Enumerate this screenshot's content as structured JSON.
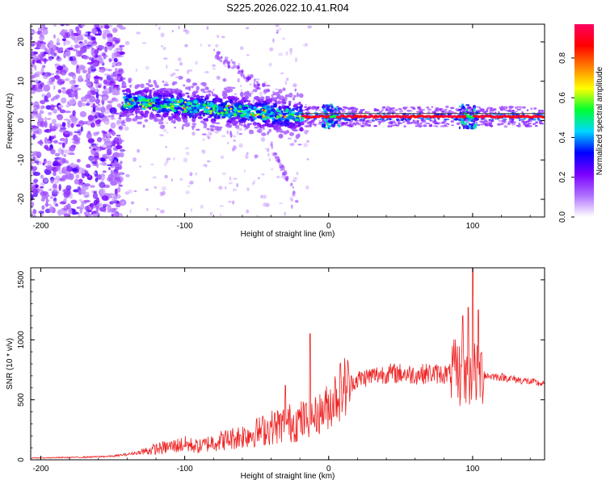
{
  "title": "S225.2026.022.10.41.R04",
  "chart_data": [
    {
      "type": "heatmap",
      "title": "S225.2026.022.10.41.R04",
      "xlabel": "Height of straight line (km)",
      "ylabel": "Frequency (Hz)",
      "xlim": [
        -207,
        150
      ],
      "ylim": [
        -24.5,
        24.5
      ],
      "xticks": [
        -200,
        -100,
        0,
        100
      ],
      "xtick_labels": [
        "-200",
        "-100",
        "0",
        "100"
      ],
      "yticks": [
        -20,
        -10,
        0,
        10,
        20
      ],
      "ytick_labels": [
        "-20",
        "-10",
        "0",
        "10",
        "20"
      ],
      "colorbar": {
        "label": "Normalized spectral amplitude",
        "range": [
          0.0,
          0.97
        ],
        "ticks": [
          0.0,
          0.2,
          0.4,
          0.6,
          0.8
        ],
        "tick_labels": [
          "0.0",
          "0.2",
          "0.4",
          "0.6",
          "0.8"
        ],
        "colormap": [
          "#ffffff",
          "#b070ff",
          "#7a00ff",
          "#0000ff",
          "#00d8ff",
          "#00ff30",
          "#ffff00",
          "#ff8000",
          "#ff0000",
          "#ff0060"
        ]
      },
      "features": {
        "noise_region_km": [
          -207,
          -143
        ],
        "dispersed_band_km": [
          -143,
          -18
        ],
        "band_center_hz": [
          5,
          1
        ],
        "coherent_line_km": [
          -18,
          150
        ],
        "coherent_line_hz": 1,
        "perturbations_km": [
          2,
          97
        ]
      },
      "reference_line_hz": 1.8
    },
    {
      "type": "line",
      "xlabel": "Height of straight line (km)",
      "ylabel": "SNR (10 * v/v)",
      "xlim": [
        -207,
        150
      ],
      "ylim": [
        0,
        1600
      ],
      "xticks": [
        -200,
        -100,
        0,
        100
      ],
      "xtick_labels": [
        "-200",
        "-100",
        "0",
        "100"
      ],
      "yticks": [
        0,
        500,
        1000,
        1500
      ],
      "ytick_labels": [
        "0",
        "500",
        "1000",
        "1500"
      ],
      "line_color": "#ee2222",
      "series": [
        {
          "name": "SNR",
          "x": [
            -207,
            -190,
            -170,
            -150,
            -140,
            -130,
            -120,
            -110,
            -100,
            -90,
            -80,
            -70,
            -60,
            -50,
            -40,
            -30,
            -22,
            -15,
            -10,
            -5,
            0,
            5,
            10,
            20,
            30,
            40,
            50,
            60,
            70,
            80,
            90,
            95,
            100,
            105,
            110,
            120,
            130,
            140,
            150
          ],
          "values": [
            15,
            18,
            22,
            30,
            45,
            65,
            90,
            110,
            130,
            110,
            150,
            170,
            200,
            230,
            270,
            300,
            320,
            330,
            360,
            400,
            450,
            540,
            600,
            670,
            700,
            720,
            720,
            710,
            720,
            715,
            720,
            700,
            720,
            720,
            700,
            690,
            670,
            650,
            630
          ]
        }
      ],
      "spikes": [
        {
          "x": -30,
          "value": 620
        },
        {
          "x": -13,
          "value": 1050
        },
        {
          "x": 93,
          "value": 1200
        },
        {
          "x": 97,
          "value": 1270
        },
        {
          "x": 100,
          "value": 1600
        },
        {
          "x": 104,
          "value": 1250
        }
      ]
    }
  ]
}
